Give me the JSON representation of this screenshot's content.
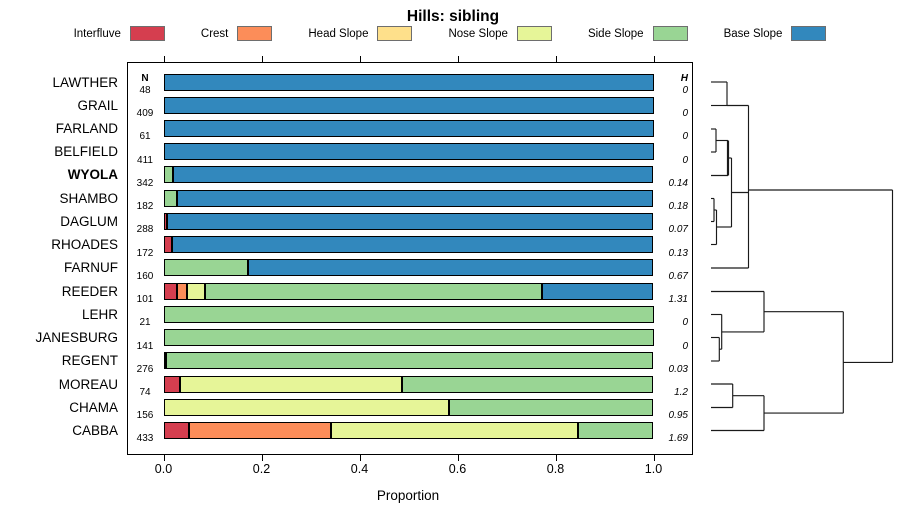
{
  "chart_data": {
    "type": "bar",
    "variant": "stacked-horizontal-proportion",
    "title": "Hills: sibling",
    "xlabel": "Proportion",
    "xlim": [
      0,
      1
    ],
    "xticks": [
      "0.0",
      "0.2",
      "0.4",
      "0.6",
      "0.8",
      "1.0"
    ],
    "n_header": "N",
    "h_header": "H",
    "legend": [
      {
        "label": "Interfluve",
        "color": "#D53E4F"
      },
      {
        "label": "Crest",
        "color": "#FC8D59"
      },
      {
        "label": "Head Slope",
        "color": "#FEE08B"
      },
      {
        "label": "Nose Slope",
        "color": "#E6F598"
      },
      {
        "label": "Side Slope",
        "color": "#99D594"
      },
      {
        "label": "Base Slope",
        "color": "#3288BD"
      }
    ],
    "rows": [
      {
        "label": "LAWTHER",
        "n": "48",
        "h": "0",
        "bold": false,
        "segments": [
          {
            "cat": "Base Slope",
            "p": 1.0
          }
        ]
      },
      {
        "label": "GRAIL",
        "n": "409",
        "h": "0",
        "bold": false,
        "segments": [
          {
            "cat": "Base Slope",
            "p": 1.0
          }
        ]
      },
      {
        "label": "FARLAND",
        "n": "61",
        "h": "0",
        "bold": false,
        "segments": [
          {
            "cat": "Base Slope",
            "p": 1.0
          }
        ]
      },
      {
        "label": "BELFIELD",
        "n": "411",
        "h": "0",
        "bold": false,
        "segments": [
          {
            "cat": "Base Slope",
            "p": 1.0
          }
        ]
      },
      {
        "label": "WYOLA",
        "n": "342",
        "h": "0.14",
        "bold": true,
        "segments": [
          {
            "cat": "Side Slope",
            "p": 0.02
          },
          {
            "cat": "Base Slope",
            "p": 0.98
          }
        ]
      },
      {
        "label": "SHAMBO",
        "n": "182",
        "h": "0.18",
        "bold": false,
        "segments": [
          {
            "cat": "Side Slope",
            "p": 0.027
          },
          {
            "cat": "Base Slope",
            "p": 0.973
          }
        ]
      },
      {
        "label": "DAGLUM",
        "n": "288",
        "h": "0.07",
        "bold": false,
        "segments": [
          {
            "cat": "Interfluve",
            "p": 0.008
          },
          {
            "cat": "Base Slope",
            "p": 0.992
          }
        ]
      },
      {
        "label": "RHOADES",
        "n": "172",
        "h": "0.13",
        "bold": false,
        "segments": [
          {
            "cat": "Interfluve",
            "p": 0.017
          },
          {
            "cat": "Base Slope",
            "p": 0.983
          }
        ]
      },
      {
        "label": "FARNUF",
        "n": "160",
        "h": "0.67",
        "bold": false,
        "segments": [
          {
            "cat": "Side Slope",
            "p": 0.172
          },
          {
            "cat": "Base Slope",
            "p": 0.828
          }
        ]
      },
      {
        "label": "REEDER",
        "n": "101",
        "h": "1.31",
        "bold": false,
        "segments": [
          {
            "cat": "Interfluve",
            "p": 0.028
          },
          {
            "cat": "Crest",
            "p": 0.02
          },
          {
            "cat": "Nose Slope",
            "p": 0.037
          },
          {
            "cat": "Side Slope",
            "p": 0.687
          },
          {
            "cat": "Base Slope",
            "p": 0.228
          }
        ]
      },
      {
        "label": "LEHR",
        "n": "21",
        "h": "0",
        "bold": false,
        "segments": [
          {
            "cat": "Side Slope",
            "p": 1.0
          }
        ]
      },
      {
        "label": "JANESBURG",
        "n": "141",
        "h": "0",
        "bold": false,
        "segments": [
          {
            "cat": "Side Slope",
            "p": 1.0
          }
        ]
      },
      {
        "label": "REGENT",
        "n": "276",
        "h": "0.03",
        "bold": false,
        "segments": [
          {
            "cat": "Interfluve",
            "p": 0.005
          },
          {
            "cat": "Side Slope",
            "p": 0.995
          }
        ]
      },
      {
        "label": "MOREAU",
        "n": "74",
        "h": "1.2",
        "bold": false,
        "segments": [
          {
            "cat": "Interfluve",
            "p": 0.033
          },
          {
            "cat": "Nose Slope",
            "p": 0.454
          },
          {
            "cat": "Side Slope",
            "p": 0.513
          }
        ]
      },
      {
        "label": "CHAMA",
        "n": "156",
        "h": "0.95",
        "bold": false,
        "segments": [
          {
            "cat": "Nose Slope",
            "p": 0.582
          },
          {
            "cat": "Side Slope",
            "p": 0.418
          }
        ]
      },
      {
        "label": "CABBA",
        "n": "433",
        "h": "1.69",
        "bold": false,
        "segments": [
          {
            "cat": "Interfluve",
            "p": 0.053
          },
          {
            "cat": "Crest",
            "p": 0.289
          },
          {
            "cat": "Nose Slope",
            "p": 0.504
          },
          {
            "cat": "Side Slope",
            "p": 0.154
          }
        ]
      }
    ],
    "dendrogram": {
      "line_color": "#1a1a1a",
      "segments": [
        [
          711,
          82,
          727,
          82
        ],
        [
          711,
          105.5,
          727,
          105.5
        ],
        [
          727,
          82,
          727,
          105.5
        ],
        [
          727,
          105.5,
          748.5,
          105.5
        ],
        [
          711,
          129,
          716,
          129
        ],
        [
          711,
          152,
          716,
          152
        ],
        [
          716,
          129,
          716,
          152
        ],
        [
          716,
          140.5,
          728,
          140.5
        ],
        [
          711,
          175.5,
          728,
          175.5
        ],
        [
          728,
          140.5,
          728,
          175.5,
          2.2
        ],
        [
          728,
          158,
          731.5,
          158
        ],
        [
          711,
          198.5,
          714,
          198.5
        ],
        [
          711,
          221.5,
          714,
          221.5
        ],
        [
          714,
          198.5,
          714,
          221.5
        ],
        [
          714,
          210,
          716.5,
          210
        ],
        [
          711,
          244.5,
          716.5,
          244.5
        ],
        [
          716.5,
          210,
          716.5,
          244.5
        ],
        [
          716.5,
          227,
          731.5,
          227
        ],
        [
          731.5,
          158,
          731.5,
          227
        ],
        [
          731.5,
          192.5,
          748.5,
          192.5
        ],
        [
          711,
          268,
          748.5,
          268
        ],
        [
          748.5,
          105.5,
          748.5,
          268
        ],
        [
          748.5,
          190,
          892.5,
          190
        ],
        [
          711,
          291.5,
          764,
          291.5
        ],
        [
          711,
          314.5,
          721.7,
          314.5
        ],
        [
          711,
          337.5,
          719.3,
          337.5
        ],
        [
          711,
          361,
          719.3,
          361
        ],
        [
          719.3,
          337.5,
          719.3,
          361
        ],
        [
          719.3,
          349.2,
          721.7,
          349.2
        ],
        [
          721.7,
          314.5,
          721.7,
          349.2
        ],
        [
          721.7,
          331.9,
          764,
          331.9
        ],
        [
          764,
          291.5,
          764,
          331.9
        ],
        [
          764,
          311.7,
          843.3,
          311.7
        ],
        [
          711,
          384,
          732.7,
          384
        ],
        [
          711,
          407.5,
          732.7,
          407.5
        ],
        [
          732.7,
          384,
          732.7,
          407.5
        ],
        [
          732.7,
          395.7,
          764,
          395.7
        ],
        [
          711,
          430.5,
          764,
          430.5
        ],
        [
          764,
          395.7,
          764,
          430.5
        ],
        [
          764,
          413.1,
          843.3,
          413.1
        ],
        [
          843.3,
          311.7,
          843.3,
          413.1
        ],
        [
          843.3,
          362.4,
          892.5,
          362.4
        ],
        [
          892.5,
          190,
          892.5,
          362.4
        ]
      ]
    }
  }
}
